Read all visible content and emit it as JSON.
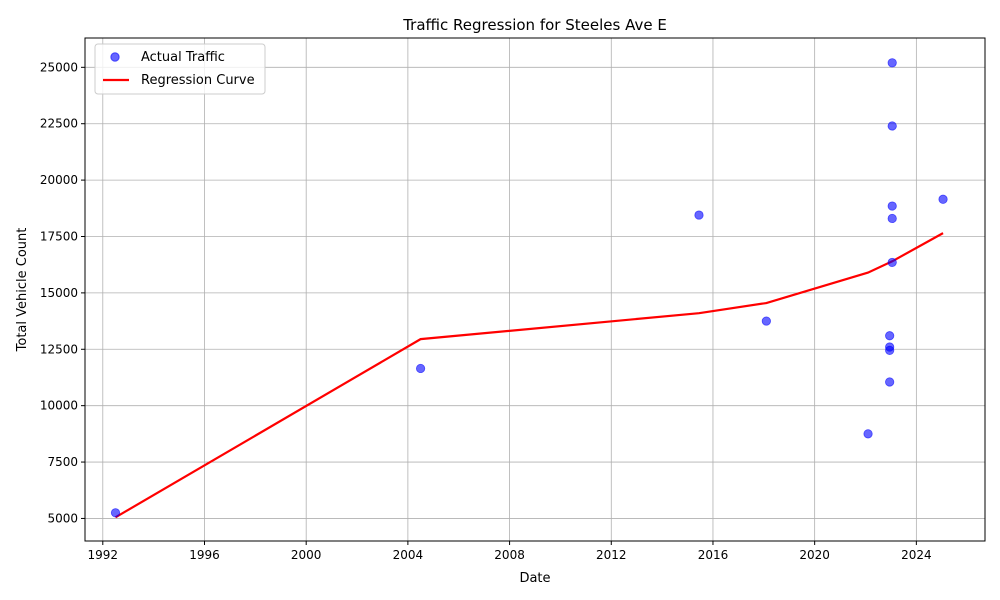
{
  "chart_data": {
    "type": "scatter",
    "title": "Traffic Regression for Steeles Ave E",
    "xlabel": "Date",
    "ylabel": "Total Vehicle Count",
    "xlim": [
      1991.3,
      2026.7
    ],
    "ylim": [
      4000,
      26300
    ],
    "xticks": [
      1992,
      1996,
      2000,
      2004,
      2008,
      2012,
      2016,
      2020,
      2024
    ],
    "yticks": [
      5000,
      7500,
      10000,
      12500,
      15000,
      17500,
      20000,
      22500,
      25000
    ],
    "grid": true,
    "legend_position": "top-left",
    "series": [
      {
        "name": "Actual Traffic",
        "kind": "scatter",
        "color": "#0000ff",
        "x": [
          1992.5,
          2004.5,
          2015.45,
          2018.1,
          2022.1,
          2022.95,
          2022.95,
          2022.95,
          2022.95,
          2023.05,
          2023.05,
          2023.05,
          2023.05,
          2023.05,
          2025.05
        ],
        "y": [
          5250,
          11650,
          18450,
          13750,
          8750,
          13100,
          12600,
          12450,
          11050,
          25200,
          22400,
          18850,
          18300,
          16350,
          19150
        ]
      },
      {
        "name": "Regression Curve",
        "kind": "line",
        "color": "#ff0000",
        "x": [
          1992.5,
          2004.5,
          2015.45,
          2018.1,
          2022.1,
          2023.05,
          2025.05
        ],
        "y": [
          5050,
          12950,
          14100,
          14550,
          15900,
          16400,
          17650
        ]
      }
    ]
  }
}
